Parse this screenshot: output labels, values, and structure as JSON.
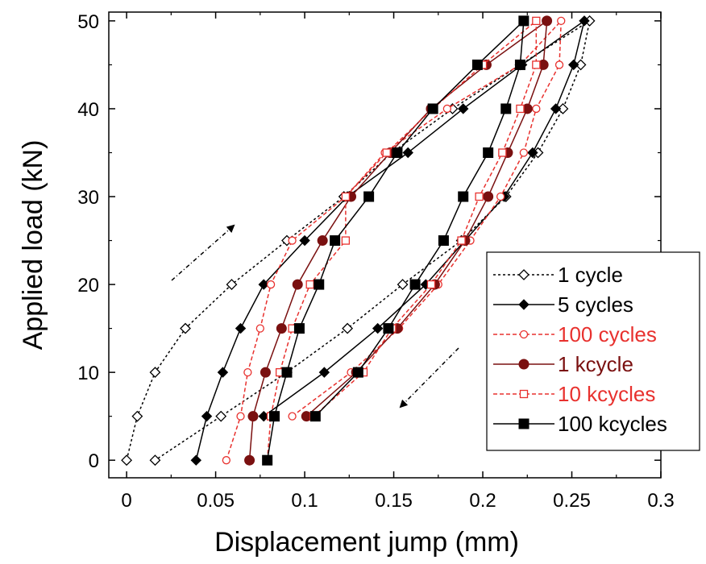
{
  "chart_data": {
    "type": "line",
    "xlabel": "Displacement jump (mm)",
    "ylabel": "Applied load (kN)",
    "xlim": [
      -0.01,
      0.3
    ],
    "ylim": [
      -2,
      51
    ],
    "xticks": [
      0,
      0.05,
      0.1,
      0.15,
      0.2,
      0.25,
      0.3
    ],
    "xtick_labels": [
      "0",
      "0.05",
      "0.1",
      "0.15",
      "0.2",
      "0.25",
      "0.3"
    ],
    "yticks": [
      0,
      10,
      20,
      30,
      40,
      50
    ],
    "ytick_labels": [
      "0",
      "10",
      "20",
      "30",
      "40",
      "50"
    ],
    "grid": false,
    "legend_position": "lower-right",
    "annotations": [
      {
        "type": "arrow",
        "direction": "up-right",
        "meaning": "loading"
      },
      {
        "type": "arrow",
        "direction": "down-left",
        "meaning": "unloading"
      }
    ],
    "series": [
      {
        "name": "1 cycle",
        "color": "#000000",
        "dash": "dotted",
        "marker": "diamond-open",
        "points": [
          [
            0.0,
            0
          ],
          [
            0.006,
            5
          ],
          [
            0.016,
            10
          ],
          [
            0.033,
            15
          ],
          [
            0.059,
            20
          ],
          [
            0.09,
            25
          ],
          [
            0.122,
            30
          ],
          [
            0.149,
            35
          ],
          [
            0.183,
            40
          ],
          [
            0.221,
            45
          ],
          [
            0.26,
            50
          ],
          [
            0.255,
            45
          ],
          [
            0.245,
            40
          ],
          [
            0.231,
            35
          ],
          [
            0.213,
            30
          ],
          [
            0.188,
            25
          ],
          [
            0.155,
            20
          ],
          [
            0.124,
            15
          ],
          [
            0.09,
            10
          ],
          [
            0.053,
            5
          ],
          [
            0.016,
            0
          ]
        ]
      },
      {
        "name": "5 cycles",
        "color": "#000000",
        "dash": "solid",
        "marker": "diamond-filled",
        "points": [
          [
            0.039,
            0
          ],
          [
            0.045,
            5
          ],
          [
            0.054,
            10
          ],
          [
            0.064,
            15
          ],
          [
            0.077,
            20
          ],
          [
            0.1,
            25
          ],
          [
            0.124,
            30
          ],
          [
            0.158,
            35
          ],
          [
            0.189,
            40
          ],
          [
            0.222,
            45
          ],
          [
            0.257,
            50
          ],
          [
            0.251,
            45
          ],
          [
            0.241,
            40
          ],
          [
            0.228,
            35
          ],
          [
            0.212,
            30
          ],
          [
            0.19,
            25
          ],
          [
            0.168,
            20
          ],
          [
            0.141,
            15
          ],
          [
            0.111,
            10
          ],
          [
            0.077,
            5
          ]
        ]
      },
      {
        "name": "100 cycles",
        "color": "#e8312e",
        "dash": "dashed",
        "marker": "circle-open",
        "points": [
          [
            0.056,
            0
          ],
          [
            0.064,
            5
          ],
          [
            0.068,
            10
          ],
          [
            0.075,
            15
          ],
          [
            0.081,
            20
          ],
          [
            0.093,
            25
          ],
          [
            0.123,
            30
          ],
          [
            0.145,
            35
          ],
          [
            0.18,
            40
          ],
          [
            0.221,
            45
          ],
          [
            0.244,
            50
          ],
          [
            0.243,
            45
          ],
          [
            0.23,
            40
          ],
          [
            0.223,
            35
          ],
          [
            0.21,
            30
          ],
          [
            0.193,
            25
          ],
          [
            0.175,
            20
          ],
          [
            0.153,
            15
          ],
          [
            0.126,
            10
          ],
          [
            0.093,
            5
          ]
        ]
      },
      {
        "name": "1 kcycle",
        "color": "#7a1010",
        "dash": "solid",
        "marker": "circle-filled",
        "points": [
          [
            0.069,
            0
          ],
          [
            0.071,
            5
          ],
          [
            0.078,
            10
          ],
          [
            0.087,
            15
          ],
          [
            0.096,
            20
          ],
          [
            0.11,
            25
          ],
          [
            0.126,
            30
          ],
          [
            0.148,
            35
          ],
          [
            0.171,
            40
          ],
          [
            0.202,
            45
          ],
          [
            0.236,
            50
          ],
          [
            0.234,
            45
          ],
          [
            0.225,
            40
          ],
          [
            0.214,
            35
          ],
          [
            0.203,
            30
          ],
          [
            0.19,
            25
          ],
          [
            0.173,
            20
          ],
          [
            0.152,
            15
          ],
          [
            0.129,
            10
          ],
          [
            0.101,
            5
          ]
        ]
      },
      {
        "name": "10 kcycles",
        "color": "#e8312e",
        "dash": "dashed",
        "marker": "square-open",
        "points": [
          [
            0.079,
            0
          ],
          [
            0.081,
            5
          ],
          [
            0.086,
            10
          ],
          [
            0.093,
            15
          ],
          [
            0.103,
            20
          ],
          [
            0.123,
            25
          ],
          [
            0.123,
            30
          ],
          [
            0.146,
            35
          ],
          [
            0.172,
            40
          ],
          [
            0.2,
            45
          ],
          [
            0.23,
            50
          ],
          [
            0.23,
            45
          ],
          [
            0.221,
            40
          ],
          [
            0.211,
            35
          ],
          [
            0.198,
            30
          ],
          [
            0.188,
            25
          ],
          [
            0.171,
            20
          ],
          [
            0.149,
            15
          ],
          [
            0.133,
            10
          ],
          [
            0.105,
            5
          ]
        ]
      },
      {
        "name": "100 kcycles",
        "color": "#000000",
        "dash": "solid",
        "marker": "square-filled",
        "points": [
          [
            0.079,
            0
          ],
          [
            0.083,
            5
          ],
          [
            0.09,
            10
          ],
          [
            0.097,
            15
          ],
          [
            0.108,
            20
          ],
          [
            0.117,
            25
          ],
          [
            0.136,
            30
          ],
          [
            0.152,
            35
          ],
          [
            0.172,
            40
          ],
          [
            0.197,
            45
          ],
          [
            0.223,
            50
          ],
          [
            0.221,
            45
          ],
          [
            0.213,
            40
          ],
          [
            0.203,
            35
          ],
          [
            0.189,
            30
          ],
          [
            0.178,
            25
          ],
          [
            0.162,
            20
          ],
          [
            0.147,
            15
          ],
          [
            0.13,
            10
          ],
          [
            0.106,
            5
          ]
        ]
      }
    ]
  }
}
